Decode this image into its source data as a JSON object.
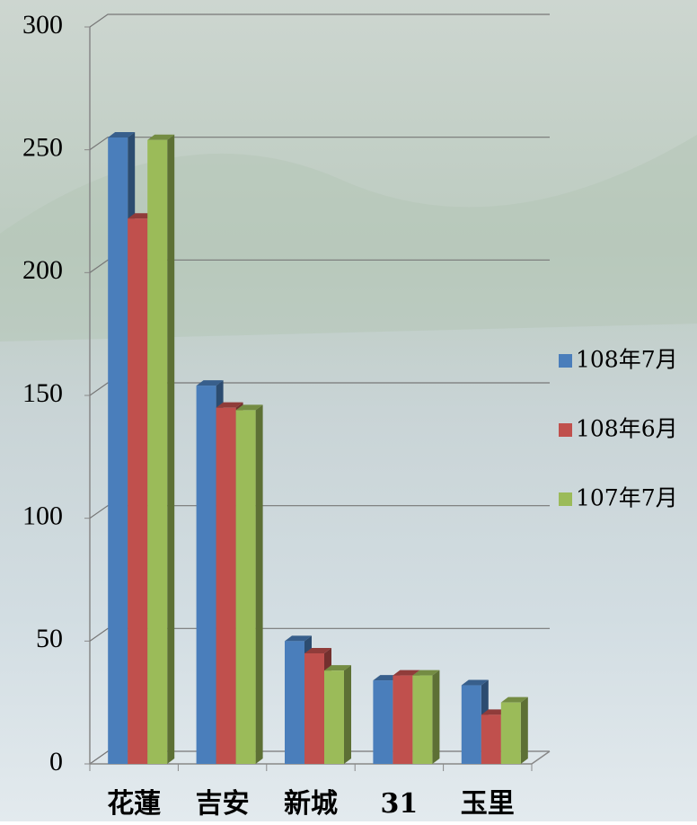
{
  "chart_data": {
    "type": "bar3d",
    "categories": [
      "花蓮",
      "吉安",
      "新城",
      "31",
      "玉里"
    ],
    "series": [
      {
        "name": "108年7月",
        "color": "#4a7ebb",
        "values": [
          255,
          154,
          50,
          34,
          32
        ]
      },
      {
        "name": "108年6月",
        "color": "#c0504d",
        "values": [
          222,
          145,
          45,
          36,
          20
        ]
      },
      {
        "name": "107年7月",
        "color": "#9bbb59",
        "values": [
          254,
          144,
          38,
          36,
          25
        ]
      }
    ],
    "ylim": [
      0,
      300
    ],
    "yticks": [
      0,
      50,
      100,
      150,
      200,
      250,
      300
    ],
    "grid": true,
    "legend": "right"
  }
}
